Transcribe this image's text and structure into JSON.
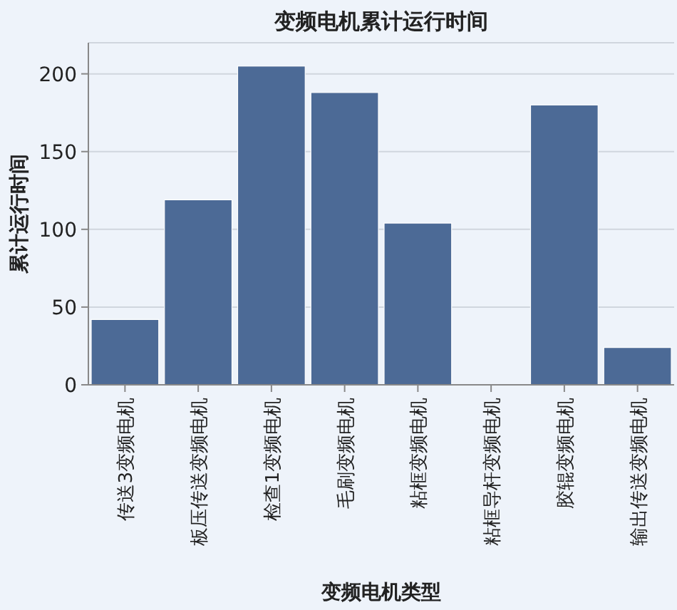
{
  "chart_data": {
    "type": "bar",
    "title": "变频电机累计运行时间",
    "xlabel": "变频电机类型",
    "ylabel": "累计运行时间",
    "categories": [
      "传送3变频电机",
      "板压传送变频电机",
      "检查1变频电机",
      "毛刷变频电机",
      "粘框变频电机",
      "粘框导杆变频电机",
      "胶辊变频电机",
      "输出传送变频电机"
    ],
    "values": [
      42,
      119,
      205,
      188,
      104,
      0,
      180,
      24
    ],
    "color": "#4c6a96",
    "ylim": [
      0,
      220
    ],
    "yticks": [
      0,
      50,
      100,
      150,
      200
    ],
    "grid": "y"
  }
}
